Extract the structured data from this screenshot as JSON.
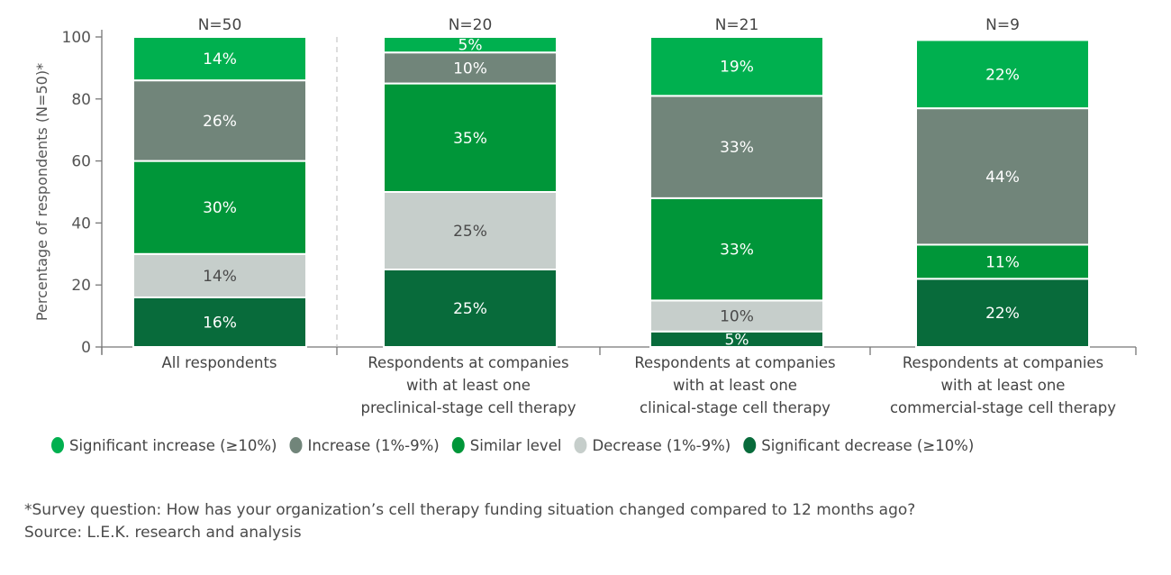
{
  "chart_data": {
    "type": "bar",
    "stacked": true,
    "ylabel": "Percentage of respondents (N=50)*",
    "ylim": [
      0,
      100
    ],
    "yticks": [
      0,
      20,
      40,
      60,
      80,
      100
    ],
    "grid": false,
    "legend_position": "bottom",
    "categories": [
      [
        "All respondents"
      ],
      [
        "Respondents at companies",
        "with at least one",
        "preclinical-stage cell therapy"
      ],
      [
        "Respondents at companies",
        "with at least one",
        "clinical-stage cell therapy"
      ],
      [
        "Respondents at companies",
        "with at least one",
        "commercial-stage cell therapy"
      ]
    ],
    "sample_sizes": [
      "N=50",
      "N=20",
      "N=21",
      "N=9"
    ],
    "series": [
      {
        "name": "Significant decrease (≥10%)",
        "color": "#086b3b",
        "label_color": "#ffffff",
        "values": [
          16,
          25,
          5,
          22
        ]
      },
      {
        "name": "Decrease (1%-9%)",
        "color": "#c6cecb",
        "label_color": "#4a4a4a",
        "values": [
          14,
          25,
          10,
          0
        ]
      },
      {
        "name": "Similar level",
        "color": "#009639",
        "label_color": "#ffffff",
        "values": [
          30,
          35,
          33,
          11
        ]
      },
      {
        "name": "Increase (1%-9%)",
        "color": "#71857a",
        "label_color": "#ffffff",
        "values": [
          26,
          10,
          33,
          44
        ]
      },
      {
        "name": "Significant increase (≥10%)",
        "color": "#00b04f",
        "label_color": "#ffffff",
        "values": [
          14,
          5,
          19,
          22
        ]
      }
    ],
    "legend_order": [
      4,
      3,
      2,
      1,
      0
    ]
  },
  "footnote": "*Survey question: How has your organization’s cell therapy funding situation changed compared to 12 months ago?",
  "source": "Source: L.E.K. research and analysis"
}
